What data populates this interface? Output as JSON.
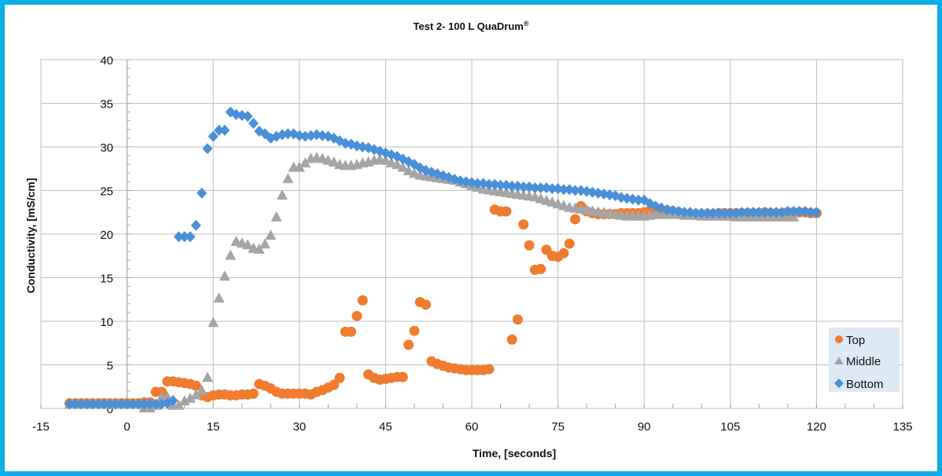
{
  "chart_data": {
    "type": "scatter",
    "title": "Test 2- 100 L QuaDrum",
    "title_mark": "®",
    "xlabel": "Time, [seconds]",
    "ylabel": "Conductivity,  [mS/cm]",
    "xlim": [
      -15,
      135
    ],
    "ylim": [
      0,
      40
    ],
    "xticks": [
      "-15",
      "0",
      "15",
      "30",
      "45",
      "60",
      "75",
      "90",
      "105",
      "120",
      "135"
    ],
    "yticks": [
      "0",
      "5",
      "10",
      "15",
      "20",
      "25",
      "30",
      "35",
      "40"
    ],
    "grid": true,
    "legend_position": "bottom-right",
    "x_start": -10,
    "x_step": 1,
    "series": [
      {
        "name": "Top",
        "color": "#f07c30",
        "marker": "circle",
        "values": [
          0.6,
          0.6,
          0.6,
          0.6,
          0.6,
          0.6,
          0.6,
          0.6,
          0.6,
          0.6,
          0.6,
          0.6,
          0.6,
          0.7,
          0.7,
          1.9,
          1.9,
          3.1,
          3.1,
          3.0,
          2.9,
          2.8,
          2.6,
          1.5,
          1.3,
          1.5,
          1.6,
          1.6,
          1.5,
          1.5,
          1.6,
          1.6,
          1.7,
          2.8,
          2.6,
          2.3,
          1.9,
          1.7,
          1.7,
          1.7,
          1.7,
          1.7,
          1.6,
          1.9,
          2.1,
          2.4,
          2.7,
          3.5,
          8.8,
          8.8,
          10.6,
          12.4,
          3.9,
          3.5,
          3.3,
          3.4,
          3.5,
          3.6,
          3.6,
          7.3,
          8.9,
          12.2,
          11.9,
          5.4,
          5.1,
          4.9,
          4.7,
          4.6,
          4.5,
          4.4,
          4.4,
          4.4,
          4.4,
          4.5,
          22.8,
          22.6,
          22.6,
          7.9,
          10.2,
          21.1,
          18.7,
          15.9,
          16.0,
          18.2,
          17.5,
          17.4,
          17.8,
          18.9,
          21.7,
          23.2,
          22.6,
          22.4,
          22.3,
          22.3,
          22.3,
          22.3,
          22.4,
          22.4,
          22.4,
          22.4,
          22.5,
          22.7,
          22.7,
          22.7,
          22.7,
          22.6,
          22.5,
          22.3,
          22.3,
          22.3,
          22.2,
          22.3,
          22.3,
          22.4,
          22.4,
          22.4,
          22.4,
          22.4,
          22.4,
          22.4,
          22.4,
          22.5,
          22.4,
          22.4,
          22.4,
          22.5,
          22.5,
          22.5,
          22.5,
          22.4,
          22.4
        ]
      },
      {
        "name": "Middle",
        "color": "#a5a5a5",
        "marker": "triangle",
        "values": [
          0.4,
          0.4,
          0.4,
          0.4,
          0.4,
          0.4,
          0.4,
          0.4,
          0.4,
          0.4,
          0.4,
          0.4,
          0.4,
          0.0,
          0.0,
          0.3,
          1.2,
          1.3,
          0.3,
          0.3,
          0.8,
          1.1,
          1.5,
          2.0,
          3.5,
          9.8,
          12.6,
          15.1,
          17.5,
          19.1,
          18.9,
          18.7,
          18.3,
          18.2,
          18.8,
          19.8,
          21.9,
          24.4,
          26.3,
          27.6,
          27.6,
          28.1,
          28.6,
          28.7,
          28.6,
          28.4,
          28.2,
          27.9,
          27.8,
          27.8,
          27.9,
          28.1,
          28.2,
          28.4,
          28.5,
          28.4,
          28.1,
          27.9,
          27.6,
          27.2,
          26.9,
          26.7,
          26.6,
          26.5,
          26.4,
          26.3,
          26.2,
          26.1,
          25.9,
          25.7,
          25.5,
          25.3,
          25.1,
          25.0,
          24.9,
          24.8,
          24.7,
          24.6,
          24.5,
          24.4,
          24.3,
          24.2,
          24.0,
          23.8,
          23.6,
          23.4,
          23.2,
          23.0,
          22.9,
          22.8,
          22.7,
          22.6,
          22.5,
          22.4,
          22.3,
          22.2,
          22.1,
          22.0,
          22.0,
          22.0,
          22.0,
          22.1,
          22.2,
          22.2,
          22.2,
          22.2,
          22.2,
          22.1,
          22.1,
          22.1,
          22.0,
          22.0,
          22.0,
          22.0,
          22.0,
          22.0,
          21.9,
          21.9,
          21.9,
          21.9,
          21.9,
          21.9,
          21.9,
          21.9,
          21.9,
          21.9,
          21.9
        ]
      },
      {
        "name": "Bottom",
        "color": "#4a90d9",
        "marker": "diamond",
        "values": [
          0.5,
          0.5,
          0.5,
          0.5,
          0.5,
          0.5,
          0.5,
          0.5,
          0.5,
          0.5,
          0.5,
          0.5,
          0.5,
          0.5,
          0.5,
          0.5,
          0.5,
          0.6,
          0.9,
          19.7,
          19.7,
          19.7,
          21.0,
          24.7,
          29.8,
          31.2,
          31.9,
          31.9,
          34.0,
          33.7,
          33.6,
          33.5,
          32.7,
          31.8,
          31.5,
          31.0,
          31.2,
          31.4,
          31.5,
          31.5,
          31.3,
          31.2,
          31.3,
          31.4,
          31.3,
          31.2,
          31.0,
          30.7,
          30.4,
          30.3,
          30.1,
          30.0,
          29.9,
          29.7,
          29.5,
          29.3,
          29.1,
          28.9,
          28.6,
          28.3,
          28.0,
          27.6,
          27.3,
          27.1,
          26.9,
          26.7,
          26.5,
          26.3,
          26.1,
          26.0,
          25.9,
          25.8,
          25.8,
          25.7,
          25.7,
          25.6,
          25.6,
          25.5,
          25.5,
          25.4,
          25.4,
          25.3,
          25.3,
          25.3,
          25.2,
          25.2,
          25.1,
          25.1,
          25.0,
          25.0,
          24.9,
          24.8,
          24.7,
          24.6,
          24.5,
          24.4,
          24.2,
          24.1,
          24.0,
          23.9,
          23.9,
          23.5,
          23.2,
          23.0,
          22.8,
          22.7,
          22.6,
          22.5,
          22.5,
          22.4,
          22.4,
          22.4,
          22.4,
          22.4,
          22.4,
          22.4,
          22.4,
          22.5,
          22.5,
          22.5,
          22.5,
          22.5,
          22.5,
          22.5,
          22.5,
          22.6,
          22.6,
          22.6,
          22.6,
          22.5,
          22.5
        ]
      }
    ]
  }
}
